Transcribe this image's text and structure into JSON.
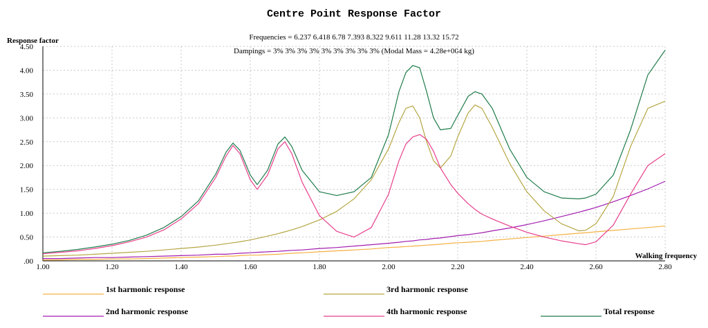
{
  "chart_data": {
    "type": "line",
    "title": "Centre Point Response Factor",
    "xlabel": "Walking frequency",
    "ylabel": "Response factor",
    "frequencies_text": "Frequencies = 6.237  6.418   6.78  7.393  8.322  9.611  11.28  13.32  15.72",
    "dampings_text": "Dampings =     3%      3%      3%      3%      3%      3%      3%      3%      3%  (Modal Mass = 4.28e+004  kg)",
    "xlim": [
      1.0,
      2.8
    ],
    "ylim": [
      0.0,
      4.5
    ],
    "x_ticks": [
      "1.00",
      "1.20",
      "1.40",
      "1.60",
      "1.80",
      "2.00",
      "2.20",
      "2.40",
      "2.60",
      "2.80"
    ],
    "y_ticks": [
      ".00",
      "0.50",
      "1.00",
      "1.50",
      "2.00",
      "2.50",
      "3.00",
      "3.50",
      "4.00",
      "4.50"
    ],
    "grid": true,
    "legend_position": "bottom",
    "x": [
      1.0,
      1.05,
      1.1,
      1.15,
      1.2,
      1.25,
      1.3,
      1.35,
      1.4,
      1.45,
      1.5,
      1.53,
      1.55,
      1.57,
      1.6,
      1.62,
      1.65,
      1.68,
      1.7,
      1.72,
      1.75,
      1.8,
      1.85,
      1.9,
      1.95,
      2.0,
      2.03,
      2.05,
      2.07,
      2.09,
      2.11,
      2.13,
      2.15,
      2.18,
      2.2,
      2.23,
      2.25,
      2.27,
      2.3,
      2.35,
      2.4,
      2.45,
      2.5,
      2.55,
      2.57,
      2.6,
      2.65,
      2.7,
      2.75,
      2.8
    ],
    "series": [
      {
        "name": "1st harmonic response",
        "color": "#f5b041",
        "values": [
          0.02,
          0.02,
          0.03,
          0.03,
          0.04,
          0.04,
          0.05,
          0.06,
          0.07,
          0.08,
          0.09,
          0.1,
          0.1,
          0.11,
          0.12,
          0.12,
          0.13,
          0.14,
          0.15,
          0.16,
          0.17,
          0.19,
          0.21,
          0.23,
          0.25,
          0.28,
          0.29,
          0.3,
          0.31,
          0.32,
          0.33,
          0.34,
          0.35,
          0.37,
          0.38,
          0.39,
          0.4,
          0.41,
          0.43,
          0.46,
          0.49,
          0.52,
          0.55,
          0.58,
          0.59,
          0.61,
          0.64,
          0.67,
          0.7,
          0.73
        ]
      },
      {
        "name": "2nd harmonic response",
        "color": "#a21caf",
        "values": [
          0.05,
          0.05,
          0.06,
          0.07,
          0.07,
          0.08,
          0.09,
          0.1,
          0.11,
          0.12,
          0.14,
          0.14,
          0.15,
          0.16,
          0.17,
          0.18,
          0.19,
          0.2,
          0.21,
          0.22,
          0.23,
          0.26,
          0.28,
          0.31,
          0.34,
          0.37,
          0.39,
          0.41,
          0.42,
          0.44,
          0.45,
          0.47,
          0.48,
          0.51,
          0.53,
          0.55,
          0.57,
          0.59,
          0.63,
          0.69,
          0.76,
          0.84,
          0.93,
          1.02,
          1.06,
          1.12,
          1.24,
          1.37,
          1.51,
          1.67
        ]
      },
      {
        "name": "3rd harmonic response",
        "color": "#b5a642",
        "values": [
          0.1,
          0.11,
          0.12,
          0.14,
          0.16,
          0.18,
          0.2,
          0.23,
          0.26,
          0.29,
          0.33,
          0.36,
          0.38,
          0.4,
          0.44,
          0.47,
          0.52,
          0.57,
          0.61,
          0.65,
          0.72,
          0.86,
          1.04,
          1.3,
          1.7,
          2.35,
          2.9,
          3.2,
          3.25,
          3.0,
          2.5,
          2.1,
          1.95,
          2.2,
          2.6,
          3.1,
          3.27,
          3.2,
          2.8,
          2.05,
          1.45,
          1.05,
          0.78,
          0.63,
          0.64,
          0.78,
          1.35,
          2.4,
          3.2,
          3.35
        ]
      },
      {
        "name": "4th harmonic response",
        "color": "#e83e8c",
        "values": [
          0.15,
          0.18,
          0.21,
          0.26,
          0.32,
          0.4,
          0.5,
          0.65,
          0.88,
          1.2,
          1.75,
          2.2,
          2.42,
          2.25,
          1.7,
          1.5,
          1.8,
          2.35,
          2.5,
          2.25,
          1.65,
          0.95,
          0.62,
          0.5,
          0.7,
          1.4,
          2.1,
          2.45,
          2.6,
          2.65,
          2.55,
          2.3,
          1.95,
          1.6,
          1.42,
          1.2,
          1.08,
          0.98,
          0.88,
          0.73,
          0.6,
          0.5,
          0.42,
          0.36,
          0.34,
          0.4,
          0.75,
          1.4,
          2.0,
          2.25
        ]
      },
      {
        "name": "Total response",
        "color": "#1e7b4a",
        "values": [
          0.17,
          0.2,
          0.24,
          0.29,
          0.35,
          0.43,
          0.54,
          0.7,
          0.93,
          1.26,
          1.82,
          2.28,
          2.47,
          2.32,
          1.8,
          1.6,
          1.9,
          2.45,
          2.6,
          2.4,
          1.9,
          1.45,
          1.37,
          1.45,
          1.75,
          2.65,
          3.55,
          3.95,
          4.1,
          4.05,
          3.55,
          3.0,
          2.75,
          2.78,
          3.05,
          3.45,
          3.55,
          3.5,
          3.2,
          2.35,
          1.75,
          1.45,
          1.32,
          1.3,
          1.32,
          1.4,
          1.8,
          2.75,
          3.9,
          4.42
        ]
      }
    ]
  }
}
